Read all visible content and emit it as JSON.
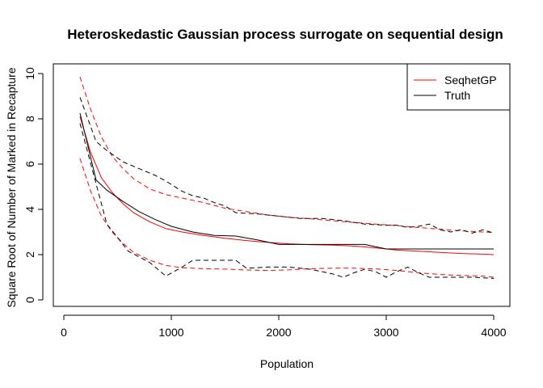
{
  "chart_data": {
    "type": "line",
    "title": "Heteroskedastic Gaussian process surrogate on sequential design",
    "xlabel": "Population",
    "ylabel": "Square Root of Number of Marked in Recapture",
    "xlim": [
      0,
      4000
    ],
    "ylim": [
      0,
      10
    ],
    "xticks": [
      0,
      1000,
      2000,
      3000,
      4000
    ],
    "yticks": [
      0,
      2,
      4,
      6,
      8,
      10
    ],
    "legend": {
      "placement": "top-right"
    },
    "series": [
      {
        "name": "SeqhetGP",
        "role": "mean",
        "color": "#ff0000",
        "dash": "solid",
        "x": [
          150,
          250,
          350,
          450,
          550,
          650,
          800,
          950,
          1100,
          1300,
          1500,
          1700,
          1900,
          2100,
          2300,
          2500,
          2700,
          2900,
          3100,
          3300,
          3500,
          3700,
          3900,
          4000
        ],
        "y": [
          8.1,
          6.5,
          5.4,
          4.75,
          4.25,
          3.85,
          3.45,
          3.15,
          3.0,
          2.85,
          2.72,
          2.62,
          2.54,
          2.48,
          2.44,
          2.42,
          2.38,
          2.3,
          2.2,
          2.15,
          2.1,
          2.05,
          2.02,
          2.0
        ]
      },
      {
        "name": "Truth",
        "role": "mean",
        "color": "#000000",
        "dash": "solid",
        "x": [
          150,
          300,
          400,
          550,
          700,
          850,
          1000,
          1200,
          1400,
          1600,
          1800,
          2000,
          2200,
          2400,
          2600,
          2800,
          3000,
          3200,
          3400,
          3600,
          3800,
          4000
        ],
        "y": [
          8.25,
          5.3,
          4.85,
          4.35,
          3.9,
          3.55,
          3.25,
          3.0,
          2.85,
          2.82,
          2.65,
          2.45,
          2.45,
          2.45,
          2.45,
          2.45,
          2.25,
          2.25,
          2.25,
          2.25,
          2.25,
          2.25
        ]
      },
      {
        "role": "upper-band",
        "color": "#ff0000",
        "dash": "dashed",
        "x": [
          150,
          250,
          350,
          450,
          550,
          650,
          800,
          950,
          1100,
          1300,
          1500,
          1700,
          1900,
          2100,
          2300,
          2500,
          2700,
          2900,
          3100,
          3300,
          3500,
          3700,
          3900,
          4000
        ],
        "y": [
          9.85,
          8.4,
          7.2,
          6.35,
          5.8,
          5.35,
          4.9,
          4.65,
          4.5,
          4.3,
          4.05,
          3.9,
          3.75,
          3.65,
          3.58,
          3.5,
          3.42,
          3.35,
          3.28,
          3.2,
          3.12,
          3.05,
          3.0,
          2.98
        ]
      },
      {
        "role": "lower-band",
        "color": "#ff0000",
        "dash": "dashed",
        "x": [
          150,
          250,
          350,
          450,
          550,
          650,
          800,
          950,
          1100,
          1300,
          1500,
          1700,
          1900,
          2100,
          2300,
          2500,
          2700,
          2900,
          3100,
          3300,
          3500,
          3700,
          3900,
          4000
        ],
        "y": [
          6.25,
          4.8,
          3.7,
          3.0,
          2.5,
          2.1,
          1.75,
          1.52,
          1.42,
          1.38,
          1.36,
          1.32,
          1.3,
          1.33,
          1.38,
          1.4,
          1.4,
          1.37,
          1.3,
          1.2,
          1.12,
          1.08,
          1.05,
          1.0
        ]
      },
      {
        "role": "upper-band",
        "color": "#000000",
        "dash": "dashed",
        "x": [
          150,
          300,
          400,
          550,
          700,
          850,
          950,
          1100,
          1200,
          1300,
          1400,
          1500,
          1600,
          1800,
          2000,
          2200,
          2400,
          2600,
          2800,
          3000,
          3100,
          3200,
          3300,
          3400,
          3500,
          3600,
          3700,
          3800,
          3900,
          4000
        ],
        "y": [
          8.95,
          7.0,
          6.6,
          6.1,
          5.8,
          5.5,
          5.25,
          4.8,
          4.6,
          4.5,
          4.3,
          4.15,
          3.85,
          3.8,
          3.7,
          3.6,
          3.6,
          3.5,
          3.35,
          3.3,
          3.3,
          3.2,
          3.25,
          3.35,
          3.1,
          3.0,
          3.1,
          2.95,
          3.1,
          2.95
        ]
      },
      {
        "role": "lower-band",
        "color": "#000000",
        "dash": "dashed",
        "x": [
          150,
          400,
          600,
          800,
          950,
          1100,
          1200,
          1400,
          1600,
          1700,
          1900,
          2100,
          2300,
          2500,
          2600,
          2700,
          2800,
          2900,
          3000,
          3100,
          3200,
          3300,
          3400,
          3600,
          3800,
          4000
        ],
        "y": [
          7.8,
          3.35,
          2.15,
          1.65,
          1.05,
          1.45,
          1.75,
          1.75,
          1.75,
          1.4,
          1.45,
          1.45,
          1.35,
          1.15,
          1.0,
          1.2,
          1.35,
          1.25,
          1.0,
          1.25,
          1.45,
          1.2,
          1.0,
          1.0,
          1.0,
          0.95
        ]
      }
    ]
  },
  "legend_entries": [
    {
      "label": "SeqhetGP",
      "color": "#ff0000"
    },
    {
      "label": "Truth",
      "color": "#000000"
    }
  ]
}
